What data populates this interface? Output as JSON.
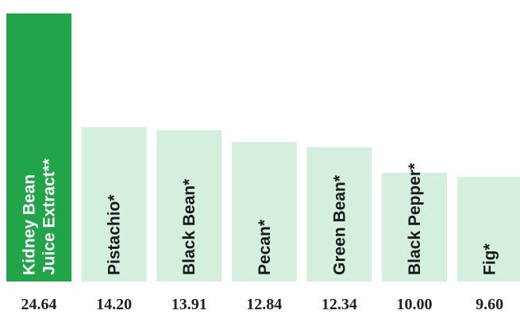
{
  "chart_data": {
    "type": "bar",
    "title": "",
    "xlabel": "",
    "ylabel": "",
    "categories": [
      [
        "Kidney Bean",
        "Juice Extract**"
      ],
      [
        "Pistachio*"
      ],
      [
        "Black Bean*"
      ],
      [
        "Pecan*"
      ],
      [
        "Green Bean*"
      ],
      [
        "Black Pepper*"
      ],
      [
        "Fig*"
      ]
    ],
    "values": [
      24.64,
      14.2,
      13.91,
      12.84,
      12.34,
      10.0,
      9.6
    ],
    "value_labels": [
      "24.64",
      "14.20",
      "13.91",
      "12.84",
      "12.34",
      "10.00",
      "9.60"
    ],
    "ylim": [
      0,
      24.64
    ],
    "grid": false,
    "highlight_index": 0
  },
  "colors": {
    "highlight_bar": "#22a44a",
    "bar": "#d5efde",
    "highlight_text": "#ffffff",
    "text": "#1a1a1a"
  }
}
